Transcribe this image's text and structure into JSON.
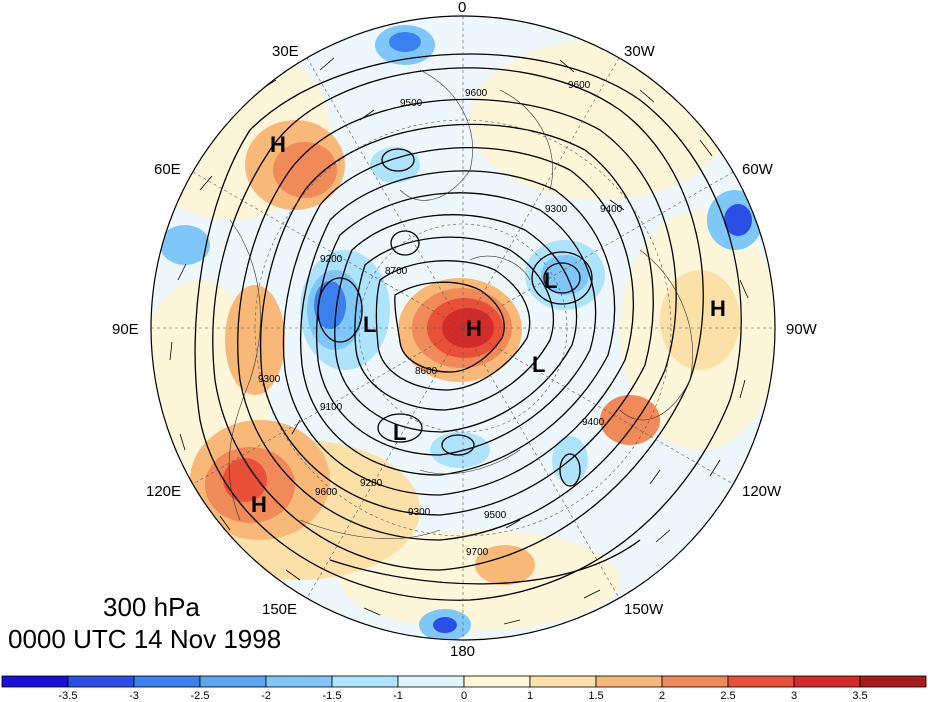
{
  "title": {
    "level": "300 hPa",
    "time": "0000 UTC 14 Nov 1998"
  },
  "lon_labels": {
    "l0": "0",
    "l30w": "30W",
    "l60w": "60W",
    "l90w": "90W",
    "l120w": "120W",
    "l150w": "150W",
    "l180": "180",
    "l150e": "150E",
    "l120e": "120E",
    "l90e": "90E",
    "l60e": "60E",
    "l30e": "30E"
  },
  "centers": {
    "c1": "H",
    "c2": "H",
    "c3": "H",
    "c4": "H",
    "c5": "L",
    "c6": "L",
    "c7": "L",
    "c8": "L"
  },
  "contour_labels": [
    "9600",
    "9500",
    "9400",
    "9300",
    "9200",
    "9100",
    "8700",
    "8600",
    "9600",
    "9500",
    "9300",
    "9200",
    "9700",
    "9600",
    "9400",
    "9300"
  ],
  "colorbar": {
    "ticks": [
      "-3.5",
      "-3",
      "-2.5",
      "-2",
      "-1.5",
      "-1",
      "0",
      "1",
      "1.5",
      "2",
      "2.5",
      "3",
      "3.5"
    ],
    "colors": [
      "#1a0fd6",
      "#2a4fe6",
      "#3a80ee",
      "#5aa6f3",
      "#7fc7f8",
      "#aee4fb",
      "#dff4fc",
      "#fdf6d8",
      "#fbe0a8",
      "#f7b878",
      "#f08a58",
      "#e85038",
      "#d42a2a",
      "#a81b1b"
    ]
  }
}
